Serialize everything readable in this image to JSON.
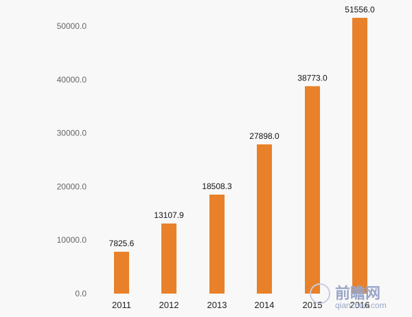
{
  "chart_data": {
    "type": "bar",
    "categories": [
      "2011",
      "2012",
      "2013",
      "2014",
      "2015",
      "2016"
    ],
    "values": [
      7825.6,
      13107.9,
      18508.3,
      27898.0,
      38773.0,
      51556.0
    ],
    "value_labels": [
      "7825.6",
      "13107.9",
      "18508.3",
      "27898.0",
      "38773.0",
      "51556.0"
    ],
    "y_ticks": [
      "0.0",
      "10000.0",
      "20000.0",
      "30000.0",
      "40000.0",
      "50000.0"
    ],
    "ylim": [
      0,
      50000
    ],
    "title": "",
    "xlabel": "",
    "ylabel": "",
    "grid": false,
    "legend": "none",
    "colors": {
      "bar": "#e8812a",
      "background": "#f8f8f8"
    }
  },
  "watermark": {
    "text": "前瞻网",
    "subtext": "qianzhan.com"
  }
}
